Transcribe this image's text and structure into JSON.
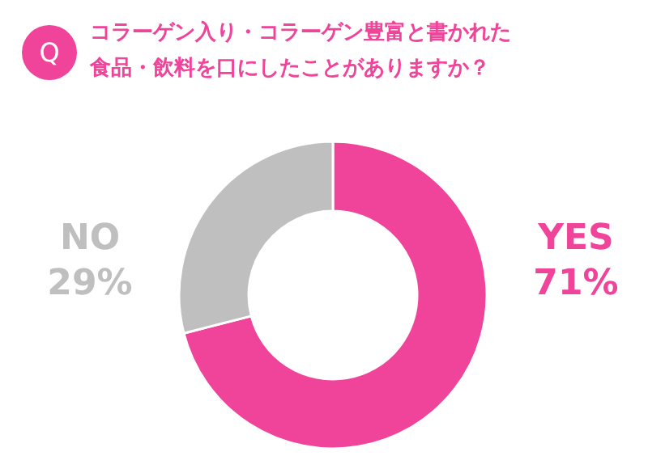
{
  "chart_data": {
    "type": "donut",
    "title": "コラーゲン入り・コラーゲン豊富と書かれた食品・飲料を口にしたことがありますか？",
    "annotations": [
      "Q"
    ],
    "categories": [
      "YES",
      "NO"
    ],
    "values": [
      71,
      29
    ],
    "value_labels": [
      "71%",
      "29%"
    ],
    "colors": [
      "#f0449a",
      "#bfbfbf"
    ]
  }
}
